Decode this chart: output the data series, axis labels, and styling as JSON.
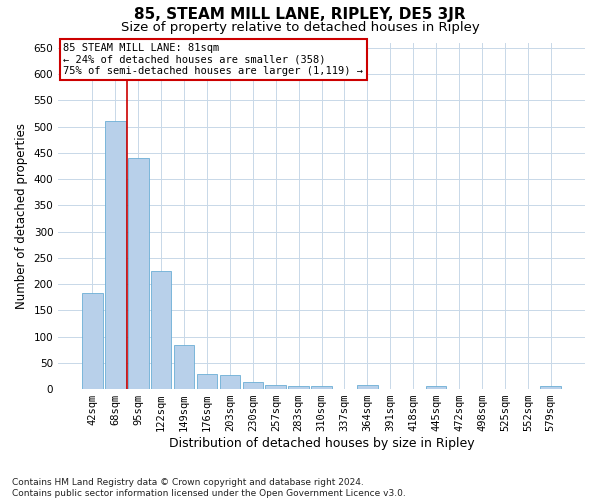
{
  "title": "85, STEAM MILL LANE, RIPLEY, DE5 3JR",
  "subtitle": "Size of property relative to detached houses in Ripley",
  "xlabel": "Distribution of detached houses by size in Ripley",
  "ylabel": "Number of detached properties",
  "categories": [
    "42sqm",
    "68sqm",
    "95sqm",
    "122sqm",
    "149sqm",
    "176sqm",
    "203sqm",
    "230sqm",
    "257sqm",
    "283sqm",
    "310sqm",
    "337sqm",
    "364sqm",
    "391sqm",
    "418sqm",
    "445sqm",
    "472sqm",
    "498sqm",
    "525sqm",
    "552sqm",
    "579sqm"
  ],
  "values": [
    183,
    511,
    441,
    224,
    83,
    28,
    27,
    14,
    8,
    5,
    5,
    0,
    8,
    0,
    0,
    5,
    0,
    0,
    0,
    0,
    5
  ],
  "bar_color": "#b8d0ea",
  "bar_edgecolor": "#6baed6",
  "vline_x": 1.5,
  "vline_color": "#cc0000",
  "annotation_text": "85 STEAM MILL LANE: 81sqm\n← 24% of detached houses are smaller (358)\n75% of semi-detached houses are larger (1,119) →",
  "annotation_box_color": "#ffffff",
  "annotation_box_edgecolor": "#cc0000",
  "ylim": [
    0,
    660
  ],
  "yticks": [
    0,
    50,
    100,
    150,
    200,
    250,
    300,
    350,
    400,
    450,
    500,
    550,
    600,
    650
  ],
  "footnote": "Contains HM Land Registry data © Crown copyright and database right 2024.\nContains public sector information licensed under the Open Government Licence v3.0.",
  "background_color": "#ffffff",
  "grid_color": "#c8d8e8",
  "title_fontsize": 11,
  "subtitle_fontsize": 9.5,
  "xlabel_fontsize": 9,
  "ylabel_fontsize": 8.5,
  "tick_fontsize": 7.5,
  "footnote_fontsize": 6.5
}
